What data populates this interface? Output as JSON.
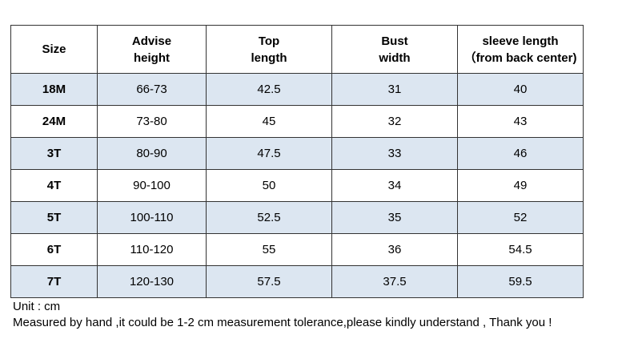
{
  "table": {
    "header": [
      [
        "Size"
      ],
      [
        "Advise",
        "height"
      ],
      [
        "Top",
        "length"
      ],
      [
        "Bust",
        "width"
      ],
      [
        "sleeve length",
        "（from back center)"
      ]
    ],
    "rows": [
      [
        "18M",
        "66-73",
        42.5,
        31,
        40
      ],
      [
        "24M",
        "73-80",
        45,
        32,
        43
      ],
      [
        "3T",
        "80-90",
        47.5,
        33,
        46
      ],
      [
        "4T",
        "90-100",
        50,
        34,
        49
      ],
      [
        "5T",
        "100-110",
        52.5,
        35,
        52
      ],
      [
        "6T",
        "110-120",
        55,
        36,
        54.5
      ],
      [
        "7T",
        "120-130",
        57.5,
        37.5,
        59.5
      ]
    ]
  },
  "notes": [
    "Unit : cm",
    "Measured by hand ,it could be 1-2 cm measurement tolerance,please kindly understand , Thank you !"
  ]
}
